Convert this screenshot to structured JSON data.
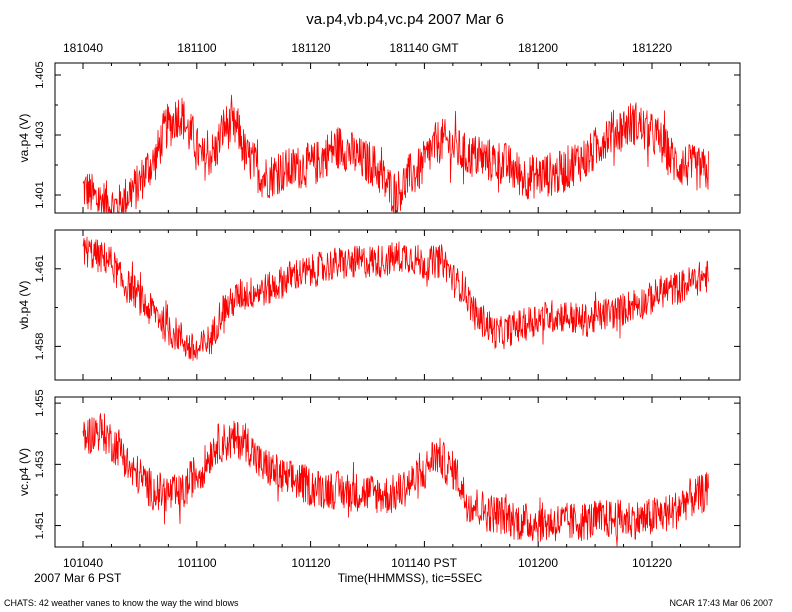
{
  "chart_data": {
    "type": "line",
    "title": "va.p4,vb.p4,vc.p4 2007 Mar 6",
    "x_top_ticks": [
      "181040",
      "181100",
      "181120",
      "181140 GMT",
      "181200",
      "181220"
    ],
    "x_bottom_ticks": [
      "101040",
      "101100",
      "101120",
      "101140 PST",
      "101200",
      "101220"
    ],
    "xlabel": "Time(HHMMSS), tic=5SEC",
    "date_label": "2007 Mar  6 PST",
    "footer_left": "CHATS: 42 weather vanes to know the way the wind blows",
    "footer_right": "NCAR 17:43 Mar 06 2007",
    "x_range_seconds": [
      0,
      110
    ],
    "series_color": "#ff0000",
    "panels": [
      {
        "name": "va.p4",
        "ylabel": "va.p4 (V)",
        "ylim": [
          1.4004,
          1.4054
        ],
        "yticks": [
          1.401,
          1.403,
          1.405
        ],
        "ytick_labels": [
          "1.401",
          "1.403",
          "1.405"
        ],
        "band": 0.00075,
        "knots": [
          [
            0,
            1.4012
          ],
          [
            3,
            1.4008
          ],
          [
            6,
            1.4006
          ],
          [
            9,
            1.4012
          ],
          [
            12,
            1.402
          ],
          [
            15,
            1.4033
          ],
          [
            17,
            1.4037
          ],
          [
            19,
            1.403
          ],
          [
            21,
            1.4022
          ],
          [
            23,
            1.4024
          ],
          [
            25,
            1.4033
          ],
          [
            27,
            1.4032
          ],
          [
            29,
            1.4022
          ],
          [
            32,
            1.4016
          ],
          [
            35,
            1.4018
          ],
          [
            40,
            1.402
          ],
          [
            45,
            1.4026
          ],
          [
            50,
            1.4021
          ],
          [
            55,
            1.4011
          ],
          [
            58,
            1.4017
          ],
          [
            63,
            1.4028
          ],
          [
            68,
            1.4023
          ],
          [
            73,
            1.4021
          ],
          [
            78,
            1.4016
          ],
          [
            83,
            1.4017
          ],
          [
            88,
            1.4022
          ],
          [
            93,
            1.4031
          ],
          [
            97,
            1.4034
          ],
          [
            100,
            1.403
          ],
          [
            105,
            1.402
          ],
          [
            110,
            1.4018
          ]
        ]
      },
      {
        "name": "vb.p4",
        "ylabel": "vb.p4 (V)",
        "ylim": [
          1.4567,
          1.4625
        ],
        "yticks": [
          1.458,
          1.461
        ],
        "ytick_labels": [
          "1.458",
          "1.461"
        ],
        "band": 0.00065,
        "knots": [
          [
            0,
            1.4617
          ],
          [
            4,
            1.4614
          ],
          [
            8,
            1.4603
          ],
          [
            12,
            1.4594
          ],
          [
            16,
            1.4585
          ],
          [
            20,
            1.4578
          ],
          [
            22,
            1.4582
          ],
          [
            25,
            1.4595
          ],
          [
            28,
            1.46
          ],
          [
            32,
            1.4602
          ],
          [
            38,
            1.4608
          ],
          [
            45,
            1.4612
          ],
          [
            52,
            1.4613
          ],
          [
            57,
            1.4615
          ],
          [
            60,
            1.4612
          ],
          [
            63,
            1.4613
          ],
          [
            66,
            1.4604
          ],
          [
            70,
            1.459
          ],
          [
            73,
            1.4585
          ],
          [
            77,
            1.4588
          ],
          [
            80,
            1.4591
          ],
          [
            84,
            1.4592
          ],
          [
            88,
            1.459
          ],
          [
            93,
            1.4593
          ],
          [
            98,
            1.4597
          ],
          [
            103,
            1.4602
          ],
          [
            110,
            1.4607
          ]
        ]
      },
      {
        "name": "vc.p4",
        "ylabel": "vc.p4 (V)",
        "ylim": [
          1.4503,
          1.4552
        ],
        "yticks": [
          1.451,
          1.453,
          1.455
        ],
        "ytick_labels": [
          "1.451",
          "1.453",
          "1.455"
        ],
        "band": 0.00065,
        "knots": [
          [
            0,
            1.4539
          ],
          [
            3,
            1.4541
          ],
          [
            6,
            1.4536
          ],
          [
            9,
            1.4527
          ],
          [
            13,
            1.4521
          ],
          [
            17,
            1.452
          ],
          [
            20,
            1.4527
          ],
          [
            24,
            1.4537
          ],
          [
            28,
            1.4538
          ],
          [
            32,
            1.4529
          ],
          [
            36,
            1.4525
          ],
          [
            42,
            1.4522
          ],
          [
            48,
            1.4521
          ],
          [
            54,
            1.452
          ],
          [
            59,
            1.4525
          ],
          [
            62,
            1.4533
          ],
          [
            65,
            1.4528
          ],
          [
            68,
            1.4517
          ],
          [
            72,
            1.4514
          ],
          [
            78,
            1.4511
          ],
          [
            85,
            1.4511
          ],
          [
            92,
            1.4512
          ],
          [
            98,
            1.4512
          ],
          [
            103,
            1.4514
          ],
          [
            107,
            1.4519
          ],
          [
            110,
            1.4521
          ]
        ]
      }
    ]
  }
}
